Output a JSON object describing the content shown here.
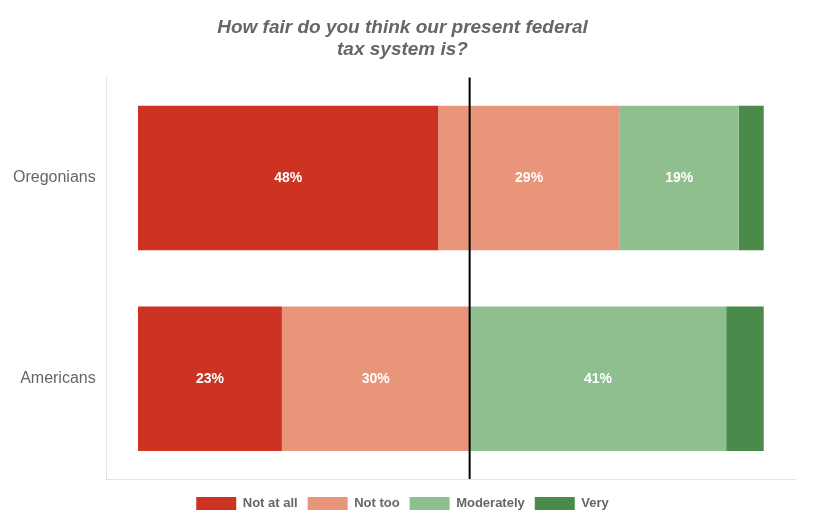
{
  "chart_data": {
    "type": "bar",
    "orientation": "horizontal",
    "stacked": true,
    "title": "How fair do you think our present federal\ntax system is?",
    "categories": [
      "Oregonians",
      "Americans"
    ],
    "series": [
      {
        "name": "Not at all",
        "color": "#cc3322",
        "values": [
          48,
          23
        ],
        "value_labels": [
          "48%",
          "23%"
        ]
      },
      {
        "name": "Not too",
        "color": "#e8957a",
        "values": [
          29,
          30
        ],
        "value_labels": [
          "29%",
          "30%"
        ]
      },
      {
        "name": "Moderately",
        "color": "#8fbe8f",
        "values": [
          19,
          41
        ],
        "value_labels": [
          "19%",
          "41%"
        ]
      },
      {
        "name": "Very",
        "color": "#4a8a4a",
        "values": [
          4,
          6
        ]
      }
    ],
    "xlim": [
      -5,
      105
    ],
    "vlines": [
      53
    ],
    "grid": false,
    "legend": "bottom",
    "data_labels": true,
    "tick_labels": "y"
  }
}
